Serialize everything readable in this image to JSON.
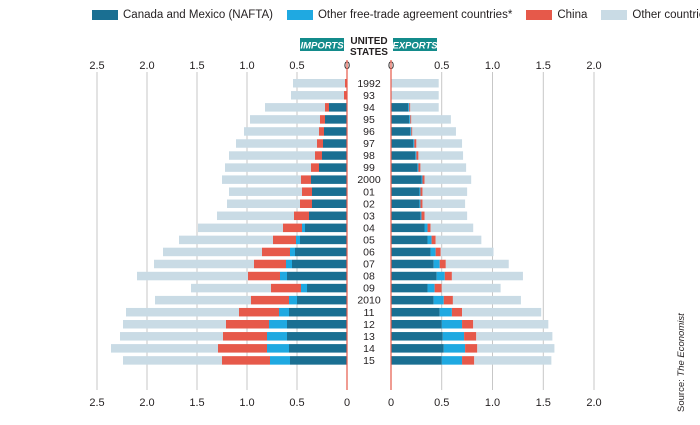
{
  "chart_data": {
    "type": "bar",
    "subtype": "back-to-back stacked horizontal bar (population-pyramid style)",
    "center_title": "UNITED STATES",
    "left_panel_label": "IMPORTS",
    "right_panel_label": "EXPORTS",
    "categories": [
      "1992",
      "93",
      "94",
      "95",
      "96",
      "97",
      "98",
      "99",
      "2000",
      "01",
      "02",
      "03",
      "04",
      "05",
      "06",
      "07",
      "08",
      "09",
      "2010",
      "11",
      "12",
      "13",
      "14",
      "15"
    ],
    "axis_range": [
      0,
      2.0
    ],
    "left_axis_range": [
      0,
      2.5
    ],
    "left_ticks": [
      "2.5",
      "2.0",
      "1.5",
      "1.0",
      "0.5",
      "0"
    ],
    "right_ticks": [
      "0",
      "0.5",
      "1.0",
      "1.5",
      "2.0"
    ],
    "grid": true,
    "legend_position": "top",
    "series": [
      {
        "name": "Canada and Mexico (NAFTA)",
        "color": "#1a6f92",
        "imports": [
          0,
          0,
          0.18,
          0.22,
          0.23,
          0.24,
          0.25,
          0.28,
          0.36,
          0.35,
          0.35,
          0.38,
          0.42,
          0.47,
          0.52,
          0.55,
          0.6,
          0.4,
          0.5,
          0.58,
          0.6,
          0.6,
          0.58,
          0.57
        ],
        "exports": [
          0,
          0,
          0.17,
          0.18,
          0.19,
          0.22,
          0.24,
          0.26,
          0.3,
          0.28,
          0.28,
          0.29,
          0.33,
          0.36,
          0.39,
          0.42,
          0.45,
          0.36,
          0.42,
          0.48,
          0.5,
          0.51,
          0.52,
          0.5
        ]
      },
      {
        "name": "Other free-trade agreement countries*",
        "color": "#1fa9e1",
        "imports": [
          0,
          0,
          0,
          0,
          0,
          0,
          0,
          0,
          0,
          0,
          0,
          0,
          0.03,
          0.04,
          0.05,
          0.06,
          0.07,
          0.06,
          0.08,
          0.1,
          0.18,
          0.2,
          0.22,
          0.2
        ],
        "exports": [
          0,
          0,
          0.01,
          0.01,
          0.01,
          0.01,
          0.01,
          0.01,
          0.01,
          0.01,
          0.01,
          0.01,
          0.03,
          0.04,
          0.05,
          0.06,
          0.08,
          0.07,
          0.1,
          0.12,
          0.2,
          0.21,
          0.21,
          0.2
        ]
      },
      {
        "name": "China",
        "color": "#e6594a",
        "imports": [
          0.02,
          0.03,
          0.04,
          0.05,
          0.05,
          0.06,
          0.07,
          0.08,
          0.1,
          0.1,
          0.12,
          0.15,
          0.19,
          0.23,
          0.28,
          0.32,
          0.32,
          0.3,
          0.38,
          0.4,
          0.43,
          0.44,
          0.49,
          0.48
        ],
        "exports": [
          0,
          0,
          0.01,
          0.01,
          0.01,
          0.02,
          0.02,
          0.02,
          0.02,
          0.02,
          0.02,
          0.03,
          0.03,
          0.04,
          0.05,
          0.06,
          0.07,
          0.07,
          0.09,
          0.1,
          0.11,
          0.12,
          0.12,
          0.12
        ]
      },
      {
        "name": "Other countries",
        "color": "#c9dbe5",
        "imports": [
          0.52,
          0.53,
          0.6,
          0.7,
          0.75,
          0.81,
          0.86,
          0.86,
          0.79,
          0.73,
          0.73,
          0.77,
          0.85,
          0.94,
          0.99,
          1.0,
          1.11,
          0.8,
          0.96,
          1.13,
          1.03,
          1.03,
          1.07,
          0.99
        ],
        "exports": [
          0.47,
          0.47,
          0.28,
          0.39,
          0.43,
          0.45,
          0.44,
          0.45,
          0.46,
          0.44,
          0.42,
          0.42,
          0.42,
          0.45,
          0.52,
          0.62,
          0.7,
          0.58,
          0.67,
          0.78,
          0.74,
          0.75,
          0.76,
          0.76
        ]
      }
    ]
  },
  "source_label": "Source: ",
  "source_name": "The Economist"
}
